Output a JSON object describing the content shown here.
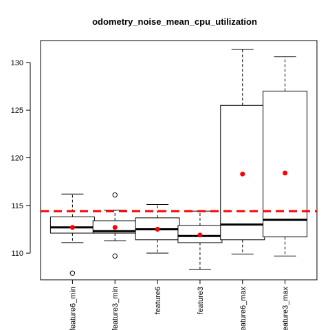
{
  "chart_data": {
    "type": "boxplot",
    "title": "odometry_noise_mean_cpu_utilization",
    "xlabel": "",
    "ylabel": "",
    "categories": [
      "feature6_min",
      "feature3_min",
      "feature6",
      "feature3",
      "feature6_max",
      "feature3_max"
    ],
    "ylim": [
      107.2,
      132.3
    ],
    "yticks": [
      110,
      115,
      120,
      125,
      130
    ],
    "grid": false,
    "boxes": [
      {
        "category": "feature6_min",
        "whisker_low": 111.1,
        "q1": 112.1,
        "median": 112.7,
        "q3": 113.8,
        "whisker_high": 116.2,
        "mean": 112.7,
        "outliers": [
          107.9
        ]
      },
      {
        "category": "feature3_min",
        "whisker_low": 111.3,
        "q1": 112.1,
        "median": 112.3,
        "q3": 113.4,
        "whisker_high": 114.5,
        "mean": 112.7,
        "outliers": [
          116.1,
          109.7
        ]
      },
      {
        "category": "feature6",
        "whisker_low": 110.0,
        "q1": 111.4,
        "median": 112.5,
        "q3": 113.7,
        "whisker_high": 115.1,
        "mean": 112.5,
        "outliers": []
      },
      {
        "category": "feature3",
        "whisker_low": 108.3,
        "q1": 111.1,
        "median": 111.8,
        "q3": 112.9,
        "whisker_high": 114.4,
        "mean": 111.9,
        "outliers": []
      },
      {
        "category": "feature6_max",
        "whisker_low": 109.9,
        "q1": 111.4,
        "median": 113.0,
        "q3": 125.5,
        "whisker_high": 131.4,
        "mean": 118.3,
        "outliers": []
      },
      {
        "category": "feature3_max",
        "whisker_low": 109.7,
        "q1": 111.7,
        "median": 113.5,
        "q3": 127.0,
        "whisker_high": 130.6,
        "mean": 118.4,
        "outliers": []
      }
    ],
    "reference_line": {
      "y": 114.4,
      "color": "#ff0000",
      "style": "dashed"
    },
    "colors": {
      "mean_point": "#ff0000",
      "box_stroke": "#000000",
      "median": "#000000"
    }
  }
}
